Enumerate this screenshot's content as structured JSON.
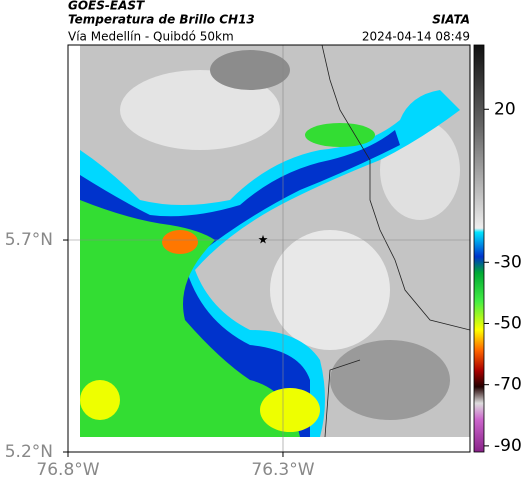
{
  "header": {
    "left_title": "GOES-EAST",
    "subtitle": "Temperatura de Brillo CH13",
    "right_title": "SIATA",
    "route": "Vía Medellín - Quibdó 50km",
    "timestamp": "2024-04-14 08:49"
  },
  "map": {
    "xlim": [
      -76.8,
      -75.865
    ],
    "ylim": [
      5.2,
      6.16
    ],
    "xticks": [
      {
        "value": -76.8,
        "label": "76.8°W"
      },
      {
        "value": -76.3,
        "label": "76.3°W"
      }
    ],
    "yticks": [
      {
        "value": 5.2,
        "label": "5.2°N"
      },
      {
        "value": 5.7,
        "label": "5.7°N"
      }
    ]
  },
  "colorbar": {
    "lim": [
      41,
      -92
    ],
    "ticks": [
      20,
      -30,
      -50,
      -70,
      -90
    ]
  }
}
